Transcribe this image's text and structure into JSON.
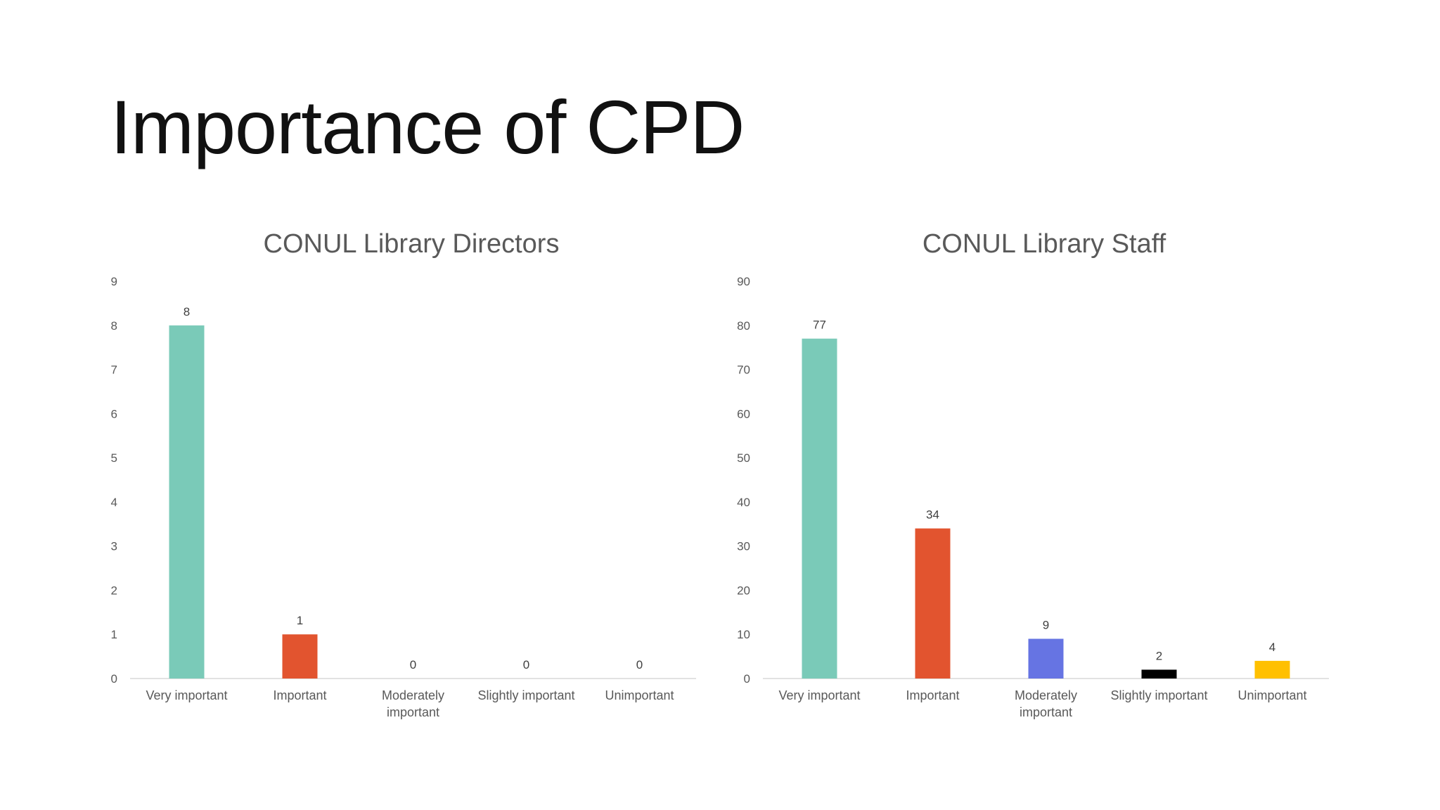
{
  "slide": {
    "title": "Importance of CPD"
  },
  "chart_data": [
    {
      "type": "bar",
      "title": "CONUL Library Directors",
      "categories": [
        "Very important",
        "Important",
        "Moderately important",
        "Slightly important",
        "Unimportant"
      ],
      "values": [
        8,
        1,
        0,
        0,
        0
      ],
      "colors": [
        "#7ACAB8",
        "#E2542F",
        "#6674E3",
        "#000000",
        "#FFC000"
      ],
      "ylim": [
        0,
        9
      ],
      "yticks": [
        0,
        1,
        2,
        3,
        4,
        5,
        6,
        7,
        8,
        9
      ],
      "xlabel": "",
      "ylabel": "",
      "grid": false,
      "data_labels": true
    },
    {
      "type": "bar",
      "title": "CONUL Library Staff",
      "categories": [
        "Very important",
        "Important",
        "Moderately important",
        "Slightly important",
        "Unimportant"
      ],
      "values": [
        77,
        34,
        9,
        2,
        4
      ],
      "colors": [
        "#7ACAB8",
        "#E2542F",
        "#6674E3",
        "#000000",
        "#FFC000"
      ],
      "ylim": [
        0,
        90
      ],
      "yticks": [
        0,
        10,
        20,
        30,
        40,
        50,
        60,
        70,
        80,
        90
      ],
      "xlabel": "",
      "ylabel": "",
      "grid": false,
      "data_labels": true
    }
  ]
}
